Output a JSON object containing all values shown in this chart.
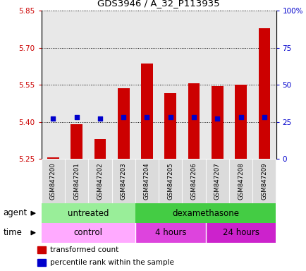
{
  "title": "GDS3946 / A_32_P113935",
  "samples": [
    "GSM847200",
    "GSM847201",
    "GSM847202",
    "GSM847203",
    "GSM847204",
    "GSM847205",
    "GSM847206",
    "GSM847207",
    "GSM847208",
    "GSM847209"
  ],
  "transformed_count": [
    5.255,
    5.39,
    5.33,
    5.535,
    5.635,
    5.515,
    5.555,
    5.545,
    5.55,
    5.78
  ],
  "percentile_rank": [
    27,
    28,
    27,
    28,
    28,
    28,
    28,
    27,
    28,
    28
  ],
  "ymin": 5.25,
  "ymax": 5.85,
  "yticks": [
    5.25,
    5.4,
    5.55,
    5.7,
    5.85
  ],
  "y2ticks": [
    0,
    25,
    50,
    75,
    100
  ],
  "bar_color": "#cc0000",
  "dot_color": "#0000cc",
  "base": 5.25,
  "bar_width": 0.5,
  "agent_untreated_color": "#99ee99",
  "agent_dex_color": "#44cc44",
  "time_control_color": "#ffaaff",
  "time_4h_color": "#dd44dd",
  "time_24h_color": "#cc22cc",
  "col_bg_color": "#cccccc"
}
